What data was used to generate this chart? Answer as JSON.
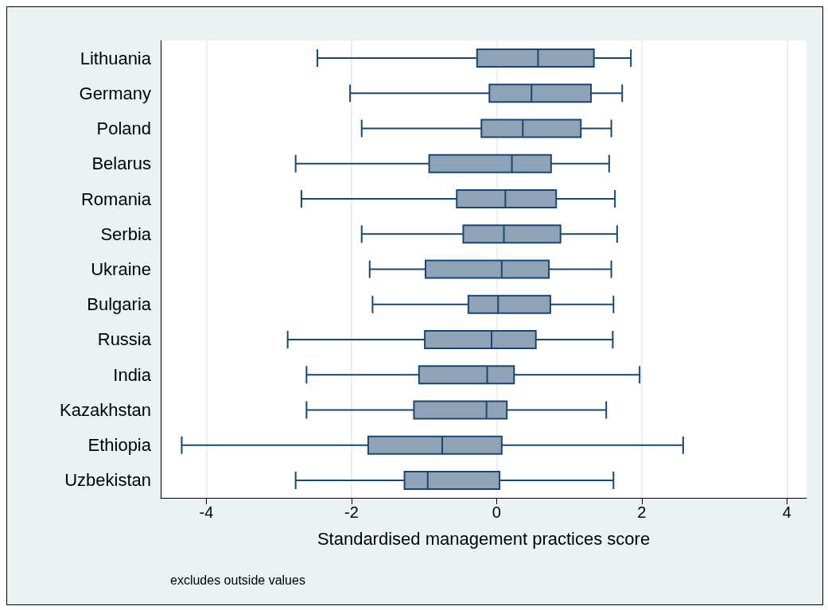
{
  "chart_data": {
    "type": "box",
    "orientation": "horizontal",
    "xlabel": "Standardised management practices score",
    "annotations": [
      "excludes outside values"
    ],
    "categories": [
      "Lithuania",
      "Germany",
      "Poland",
      "Belarus",
      "Romania",
      "Serbia",
      "Ukraine",
      "Bulgaria",
      "Russia",
      "India",
      "Kazakhstan",
      "Ethiopia",
      "Uzbekistan"
    ],
    "series": [
      {
        "color": "#8fa3b8",
        "boxes": [
          {
            "low": -2.47,
            "q1": -0.27,
            "median": 0.57,
            "q3": 1.34,
            "high": 1.85
          },
          {
            "low": -2.02,
            "q1": -0.1,
            "median": 0.48,
            "q3": 1.3,
            "high": 1.73
          },
          {
            "low": -1.86,
            "q1": -0.21,
            "median": 0.36,
            "q3": 1.16,
            "high": 1.58
          },
          {
            "low": -2.77,
            "q1": -0.93,
            "median": 0.21,
            "q3": 0.75,
            "high": 1.55
          },
          {
            "low": -2.69,
            "q1": -0.55,
            "median": 0.12,
            "q3": 0.82,
            "high": 1.63
          },
          {
            "low": -1.86,
            "q1": -0.46,
            "median": 0.1,
            "q3": 0.88,
            "high": 1.66
          },
          {
            "low": -1.75,
            "q1": -0.98,
            "median": 0.07,
            "q3": 0.72,
            "high": 1.58
          },
          {
            "low": -1.71,
            "q1": -0.39,
            "median": 0.02,
            "q3": 0.74,
            "high": 1.61
          },
          {
            "low": -2.88,
            "q1": -0.99,
            "median": -0.07,
            "q3": 0.54,
            "high": 1.6
          },
          {
            "low": -2.62,
            "q1": -1.07,
            "median": -0.13,
            "q3": 0.24,
            "high": 1.97
          },
          {
            "low": -2.62,
            "q1": -1.14,
            "median": -0.14,
            "q3": 0.14,
            "high": 1.51
          },
          {
            "low": -4.34,
            "q1": -1.77,
            "median": -0.75,
            "q3": 0.07,
            "high": 2.57
          },
          {
            "low": -2.77,
            "q1": -1.27,
            "median": -0.95,
            "q3": 0.04,
            "high": 1.61
          }
        ]
      }
    ],
    "xlim": [
      -4.63,
      4.27
    ],
    "xticks": [
      -4,
      -2,
      0,
      2,
      4
    ],
    "grid": "x"
  }
}
